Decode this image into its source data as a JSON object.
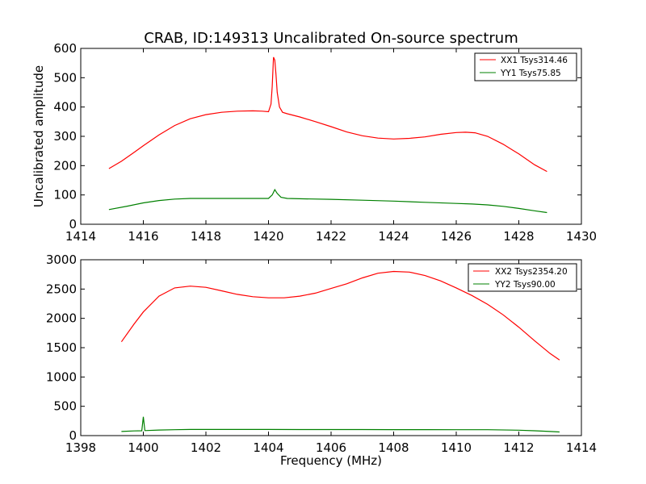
{
  "chart_data": [
    {
      "type": "line",
      "title": "CRAB, ID:149313 Uncalibrated On-source spectrum",
      "xlabel": "",
      "ylabel": "Uncalibrated amplitude",
      "xlim": [
        1414,
        1430
      ],
      "ylim": [
        0,
        600
      ],
      "xticks": [
        1414,
        1416,
        1418,
        1420,
        1422,
        1424,
        1426,
        1428,
        1430
      ],
      "yticks": [
        0,
        100,
        200,
        300,
        400,
        500,
        600
      ],
      "legend_position": "top-right",
      "series": [
        {
          "name": "XX1 Tsys314.46",
          "color": "#ff0000",
          "x": [
            1414.9,
            1415.3,
            1415.7,
            1416.0,
            1416.5,
            1417.0,
            1417.5,
            1418.0,
            1418.5,
            1419.0,
            1419.5,
            1419.8,
            1420.0,
            1420.08,
            1420.12,
            1420.16,
            1420.2,
            1420.24,
            1420.28,
            1420.35,
            1420.45,
            1420.6,
            1421.0,
            1421.5,
            1422.0,
            1422.5,
            1423.0,
            1423.5,
            1424.0,
            1424.5,
            1425.0,
            1425.5,
            1426.0,
            1426.3,
            1426.6,
            1427.0,
            1427.5,
            1428.0,
            1428.5,
            1428.9
          ],
          "y": [
            190,
            215,
            245,
            268,
            305,
            337,
            360,
            374,
            382,
            386,
            387,
            386,
            384,
            410,
            470,
            570,
            560,
            510,
            450,
            400,
            382,
            377,
            366,
            350,
            333,
            315,
            302,
            294,
            291,
            293,
            298,
            307,
            313,
            314,
            312,
            300,
            273,
            240,
            203,
            180
          ]
        },
        {
          "name": "YY1 Tsys75.85",
          "color": "#008000",
          "x": [
            1414.9,
            1415.5,
            1416.0,
            1416.5,
            1417.0,
            1417.5,
            1418.0,
            1418.5,
            1419.0,
            1419.5,
            1420.0,
            1420.12,
            1420.2,
            1420.28,
            1420.4,
            1420.6,
            1421.0,
            1422.0,
            1423.0,
            1424.0,
            1425.0,
            1426.0,
            1426.5,
            1427.0,
            1427.5,
            1428.0,
            1428.5,
            1428.9
          ],
          "y": [
            50,
            62,
            73,
            81,
            86,
            88,
            88,
            88,
            88,
            88,
            88,
            100,
            118,
            105,
            92,
            88,
            87,
            85,
            82,
            79,
            75,
            71,
            69,
            66,
            61,
            54,
            46,
            40
          ]
        }
      ]
    },
    {
      "type": "line",
      "title": "",
      "xlabel": "Frequency (MHz)",
      "ylabel": "",
      "xlim": [
        1398,
        1414
      ],
      "ylim": [
        0,
        3000
      ],
      "xticks": [
        1398,
        1400,
        1402,
        1404,
        1406,
        1408,
        1410,
        1412,
        1414
      ],
      "yticks": [
        0,
        500,
        1000,
        1500,
        2000,
        2500,
        3000
      ],
      "legend_position": "top-right",
      "series": [
        {
          "name": "XX2 Tsys2354.20",
          "color": "#ff0000",
          "x": [
            1399.3,
            1399.7,
            1400.0,
            1400.5,
            1401.0,
            1401.5,
            1402.0,
            1402.5,
            1403.0,
            1403.5,
            1404.0,
            1404.5,
            1405.0,
            1405.5,
            1406.0,
            1406.5,
            1407.0,
            1407.5,
            1408.0,
            1408.5,
            1409.0,
            1409.5,
            1410.0,
            1410.5,
            1411.0,
            1411.5,
            1412.0,
            1412.5,
            1413.0,
            1413.3
          ],
          "y": [
            1600,
            1900,
            2110,
            2380,
            2520,
            2550,
            2530,
            2470,
            2410,
            2370,
            2350,
            2350,
            2380,
            2430,
            2510,
            2590,
            2690,
            2770,
            2800,
            2790,
            2730,
            2640,
            2520,
            2390,
            2240,
            2060,
            1850,
            1620,
            1400,
            1290
          ]
        },
        {
          "name": "YY2 Tsys90.00",
          "color": "#008000",
          "x": [
            1399.3,
            1399.7,
            1399.95,
            1400.0,
            1400.05,
            1400.5,
            1401.0,
            1401.5,
            1402.0,
            1403.0,
            1404.0,
            1405.0,
            1406.0,
            1407.0,
            1408.0,
            1409.0,
            1410.0,
            1411.0,
            1412.0,
            1412.5,
            1413.0,
            1413.3
          ],
          "y": [
            70,
            80,
            82,
            320,
            85,
            95,
            100,
            105,
            105,
            104,
            104,
            103,
            103,
            103,
            102,
            102,
            101,
            100,
            92,
            82,
            70,
            62
          ]
        }
      ]
    }
  ]
}
